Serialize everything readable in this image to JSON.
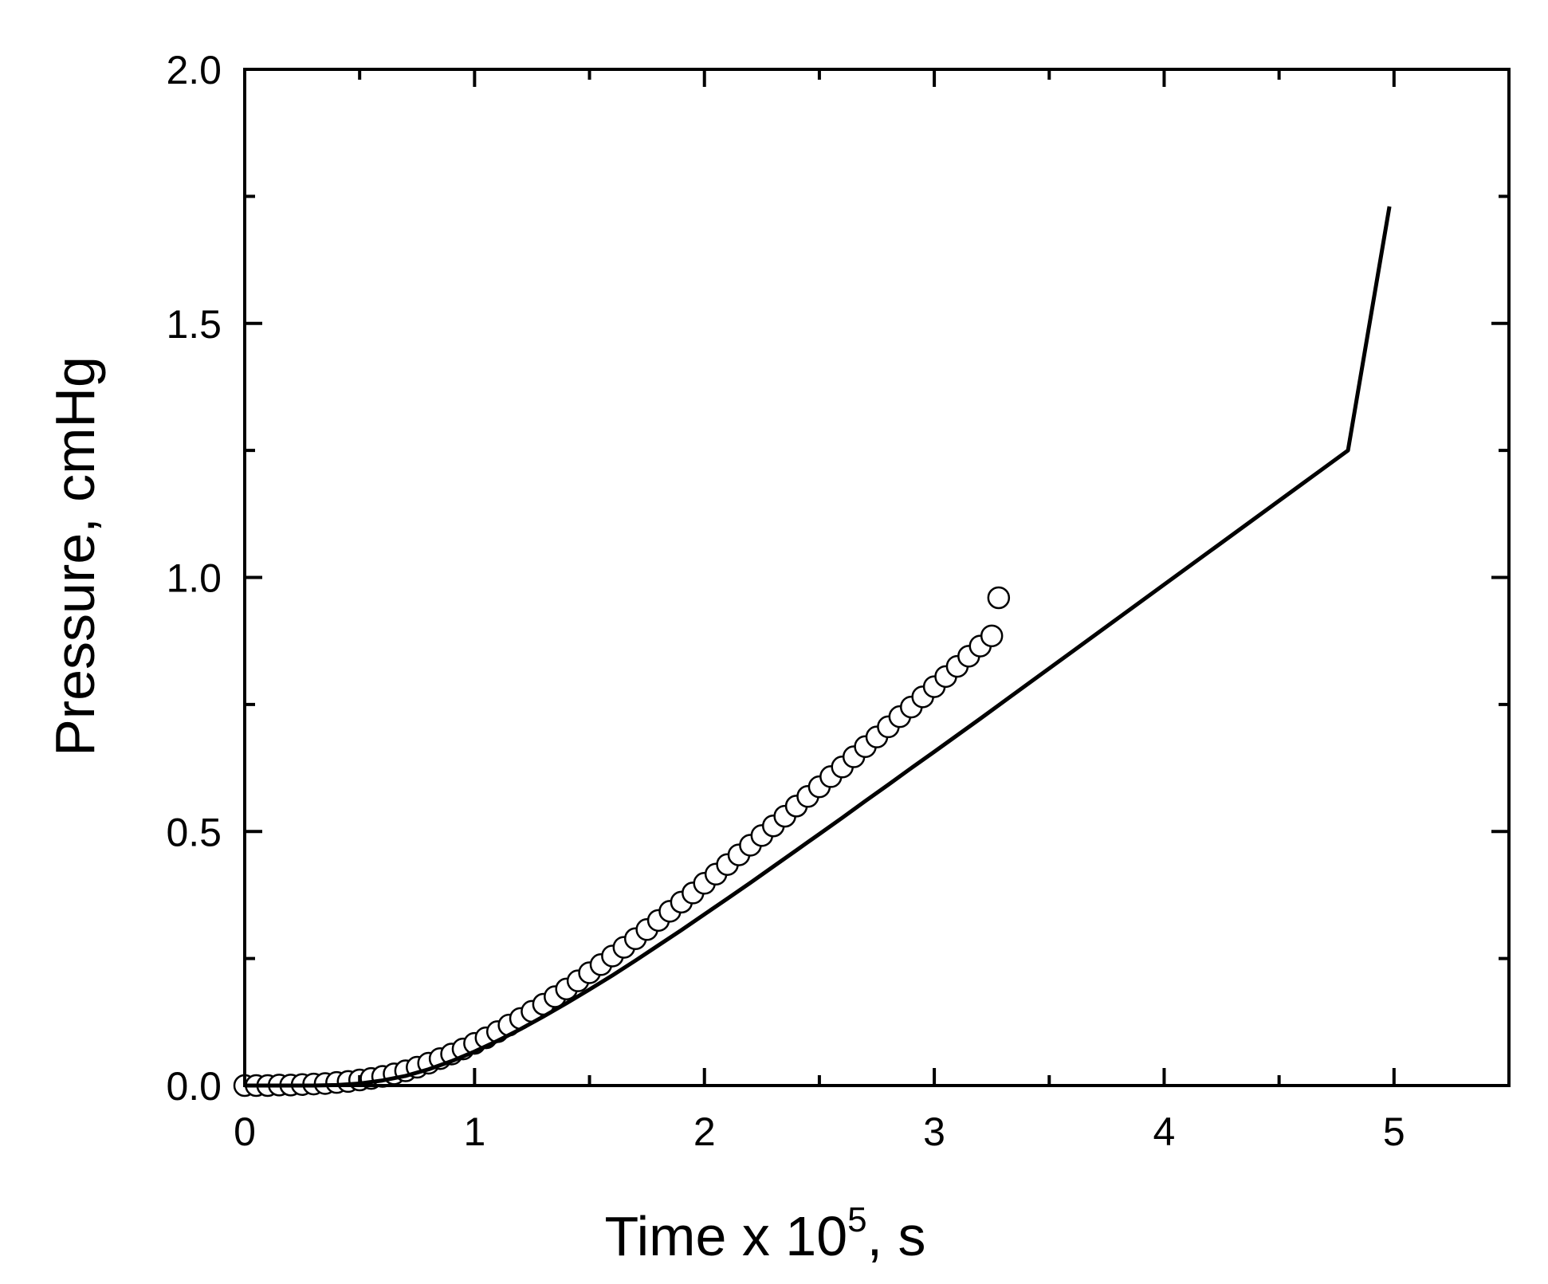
{
  "chart_data": {
    "type": "scatter",
    "title": "",
    "xlabel": "Time x 10",
    "xlabel_superscript": "5",
    "xlabel_suffix": ", s",
    "ylabel": "Pressure, cmHg",
    "xlim": [
      0,
      5.5
    ],
    "ylim": [
      0,
      2.0
    ],
    "x_ticks": [
      0,
      1,
      2,
      3,
      4,
      5
    ],
    "x_tick_labels": [
      "0",
      "1",
      "2",
      "3",
      "4",
      "5"
    ],
    "x_minor_ticks": [
      0.5,
      1.5,
      2.5,
      3.5,
      4.5
    ],
    "y_ticks": [
      0.0,
      0.5,
      1.0,
      1.5,
      2.0
    ],
    "y_tick_labels": [
      "0.0",
      "0.5",
      "1.0",
      "1.5",
      "2.0"
    ],
    "y_minor_ticks": [
      0.25,
      0.75,
      1.25,
      1.75
    ],
    "grid": false,
    "series": [
      {
        "kind": "markers",
        "marker": "open-circle",
        "color": "#000000",
        "x": [
          0.0,
          0.05,
          0.1,
          0.15,
          0.2,
          0.25,
          0.3,
          0.35,
          0.4,
          0.45,
          0.5,
          0.55,
          0.6,
          0.65,
          0.7,
          0.75,
          0.8,
          0.85,
          0.9,
          0.95,
          1.0,
          1.05,
          1.1,
          1.15,
          1.2,
          1.25,
          1.3,
          1.35,
          1.4,
          1.45,
          1.5,
          1.55,
          1.6,
          1.65,
          1.7,
          1.75,
          1.8,
          1.85,
          1.9,
          1.95,
          2.0,
          2.05,
          2.1,
          2.15,
          2.2,
          2.25,
          2.3,
          2.35,
          2.4,
          2.45,
          2.5,
          2.55,
          2.6,
          2.65,
          2.7,
          2.75,
          2.8,
          2.85,
          2.9,
          2.95,
          3.0,
          3.05,
          3.1,
          3.15,
          3.2,
          3.25,
          3.28
        ],
        "y": [
          0.0,
          0.0,
          0.0,
          0.001,
          0.001,
          0.002,
          0.003,
          0.004,
          0.006,
          0.008,
          0.011,
          0.014,
          0.018,
          0.023,
          0.029,
          0.036,
          0.044,
          0.053,
          0.062,
          0.072,
          0.083,
          0.094,
          0.106,
          0.119,
          0.132,
          0.146,
          0.16,
          0.175,
          0.19,
          0.206,
          0.222,
          0.238,
          0.255,
          0.272,
          0.289,
          0.307,
          0.325,
          0.343,
          0.361,
          0.379,
          0.398,
          0.416,
          0.435,
          0.454,
          0.473,
          0.492,
          0.511,
          0.53,
          0.55,
          0.569,
          0.588,
          0.608,
          0.627,
          0.647,
          0.667,
          0.686,
          0.706,
          0.726,
          0.745,
          0.765,
          0.785,
          0.805,
          0.825,
          0.845,
          0.865,
          0.885,
          0.96
        ]
      },
      {
        "kind": "line",
        "color": "#000000",
        "x": [
          0.0,
          0.1,
          0.2,
          0.3,
          0.4,
          0.5,
          0.6,
          0.7,
          0.8,
          0.9,
          1.0,
          1.1,
          1.2,
          1.3,
          1.4,
          1.5,
          1.6,
          1.7,
          1.8,
          1.9,
          2.0,
          2.1,
          2.2,
          2.3,
          2.4,
          2.5,
          2.6,
          2.7,
          2.8,
          2.9,
          3.0,
          3.2,
          3.4,
          3.6,
          3.8,
          4.0,
          4.2,
          4.4,
          4.6,
          4.8,
          4.98
        ],
        "y": [
          0.0,
          0.0,
          0.0,
          0.0,
          0.001,
          0.004,
          0.01,
          0.019,
          0.032,
          0.048,
          0.067,
          0.088,
          0.111,
          0.136,
          0.162,
          0.189,
          0.217,
          0.246,
          0.276,
          0.306,
          0.337,
          0.368,
          0.399,
          0.431,
          0.463,
          0.495,
          0.527,
          0.56,
          0.592,
          0.625,
          0.657,
          0.722,
          0.788,
          0.854,
          0.92,
          0.986,
          1.052,
          1.118,
          1.184,
          1.25,
          1.73
        ]
      }
    ]
  }
}
